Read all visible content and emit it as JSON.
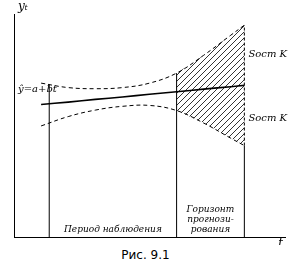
{
  "chart_data": {
    "type": "line",
    "caption": "Рис. 9.1",
    "y_label": "yₜ",
    "x_label": "t",
    "xlim": [
      0,
      10
    ],
    "ylim": [
      0,
      10
    ],
    "tick_labels": false,
    "grid": false,
    "x": [
      1,
      2,
      3,
      4,
      5,
      6,
      7,
      8,
      8.5
    ],
    "series": [
      {
        "values": [
          5.94,
          6.05,
          6.17,
          6.28,
          6.4,
          6.51,
          6.63,
          6.74,
          6.8
        ],
        "color": "#000000",
        "line_style": "solid"
      },
      {
        "values": [
          6.9,
          6.7,
          6.65,
          6.7,
          6.9,
          7.35,
          8.15,
          9.05,
          9.5
        ],
        "color": "#000000",
        "line_style": "dashed"
      },
      {
        "values": [
          4.98,
          5.4,
          5.69,
          5.86,
          5.9,
          5.67,
          5.11,
          4.43,
          4.1
        ],
        "color": "#000000",
        "line_style": "dashed"
      }
    ],
    "periods": [
      {
        "label": [
          "Период наблюдения"
        ],
        "from": 1.3,
        "to": 6
      },
      {
        "label": [
          "Горизонт",
          "прогнози-",
          "рования"
        ],
        "from": 6,
        "to": 8.5
      }
    ],
    "annotations": [
      {
        "text": "ŷ=a+bt",
        "x": 0.15,
        "y": 6.6
      },
      {
        "text": "Sост K",
        "x": 8.65,
        "y": 8.2
      },
      {
        "text": "Sост K",
        "x": 8.65,
        "y": 5.3
      }
    ]
  }
}
